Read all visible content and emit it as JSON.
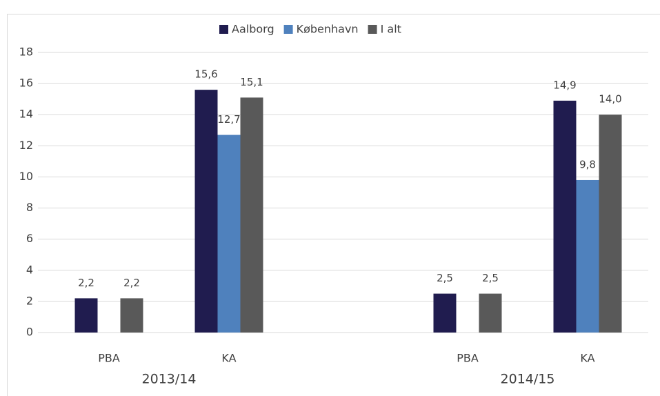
{
  "chart_data": {
    "type": "bar",
    "categories": [
      "PBA",
      "KA",
      "PBA",
      "KA"
    ],
    "category_groups": [
      "2013/14",
      "2014/15"
    ],
    "series": [
      {
        "name": "Aalborg",
        "color": "#201c4f",
        "values": [
          2.2,
          15.6,
          2.5,
          14.9
        ],
        "value_labels": [
          "2,2",
          "15,6",
          "2,5",
          "14,9"
        ]
      },
      {
        "name": "København",
        "color": "#4f81bd",
        "values": [
          null,
          12.7,
          null,
          9.8
        ],
        "value_labels": [
          null,
          "12,7",
          null,
          "9,8"
        ]
      },
      {
        "name": "I alt",
        "color": "#595959",
        "values": [
          2.2,
          15.1,
          2.5,
          14.0
        ],
        "value_labels": [
          "2,2",
          "15,1",
          "2,5",
          "14,0"
        ]
      }
    ],
    "ylim": [
      0,
      18
    ],
    "yticks": [
      0,
      2,
      4,
      6,
      8,
      10,
      12,
      14,
      16,
      18
    ],
    "grid": true,
    "legend": "top"
  }
}
